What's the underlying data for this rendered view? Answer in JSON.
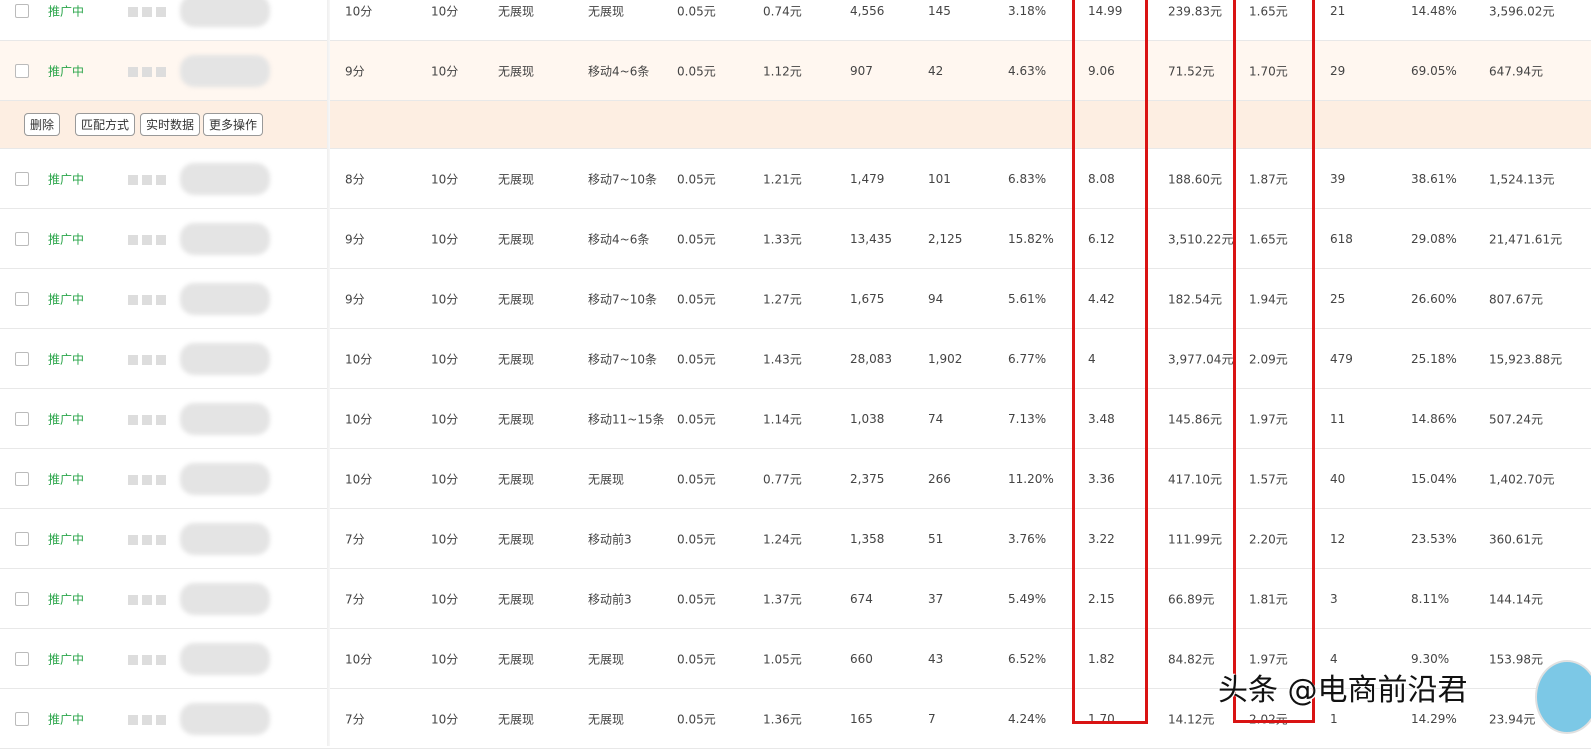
{
  "status_label": "推广中",
  "actions": {
    "delete": "删除",
    "match": "匹配方式",
    "realtime": "实时数据",
    "more": "更多操作"
  },
  "rows": [
    [
      "10分",
      "10分",
      "无展现",
      "无展现",
      "0.05元",
      "0.74元",
      "4,556",
      "145",
      "3.18%",
      "14.99",
      "239.83元",
      "1.65元",
      "21",
      "14.48%",
      "3,596.02元"
    ],
    [
      "9分",
      "10分",
      "无展现",
      "移动4~6条",
      "0.05元",
      "1.12元",
      "907",
      "42",
      "4.63%",
      "9.06",
      "71.52元",
      "1.70元",
      "29",
      "69.05%",
      "647.94元"
    ],
    [
      "8分",
      "10分",
      "无展现",
      "移动7~10条",
      "0.05元",
      "1.21元",
      "1,479",
      "101",
      "6.83%",
      "8.08",
      "188.60元",
      "1.87元",
      "39",
      "38.61%",
      "1,524.13元"
    ],
    [
      "9分",
      "10分",
      "无展现",
      "移动4~6条",
      "0.05元",
      "1.33元",
      "13,435",
      "2,125",
      "15.82%",
      "6.12",
      "3,510.22元",
      "1.65元",
      "618",
      "29.08%",
      "21,471.61元"
    ],
    [
      "9分",
      "10分",
      "无展现",
      "移动7~10条",
      "0.05元",
      "1.27元",
      "1,675",
      "94",
      "5.61%",
      "4.42",
      "182.54元",
      "1.94元",
      "25",
      "26.60%",
      "807.67元"
    ],
    [
      "10分",
      "10分",
      "无展现",
      "移动7~10条",
      "0.05元",
      "1.43元",
      "28,083",
      "1,902",
      "6.77%",
      "4",
      "3,977.04元",
      "2.09元",
      "479",
      "25.18%",
      "15,923.88元"
    ],
    [
      "10分",
      "10分",
      "无展现",
      "移动11~15条",
      "0.05元",
      "1.14元",
      "1,038",
      "74",
      "7.13%",
      "3.48",
      "145.86元",
      "1.97元",
      "11",
      "14.86%",
      "507.24元"
    ],
    [
      "10分",
      "10分",
      "无展现",
      "无展现",
      "0.05元",
      "0.77元",
      "2,375",
      "266",
      "11.20%",
      "3.36",
      "417.10元",
      "1.57元",
      "40",
      "15.04%",
      "1,402.70元"
    ],
    [
      "7分",
      "10分",
      "无展现",
      "移动前3",
      "0.05元",
      "1.24元",
      "1,358",
      "51",
      "3.76%",
      "3.22",
      "111.99元",
      "2.20元",
      "12",
      "23.53%",
      "360.61元"
    ],
    [
      "7分",
      "10分",
      "无展现",
      "移动前3",
      "0.05元",
      "1.37元",
      "674",
      "37",
      "5.49%",
      "2.15",
      "66.89元",
      "1.81元",
      "3",
      "8.11%",
      "144.14元"
    ],
    [
      "10分",
      "10分",
      "无展现",
      "无展现",
      "0.05元",
      "1.05元",
      "660",
      "43",
      "6.52%",
      "1.82",
      "84.82元",
      "1.97元",
      "4",
      "9.30%",
      "153.98元"
    ],
    [
      "7分",
      "10分",
      "无展现",
      "无展现",
      "0.05元",
      "1.36元",
      "165",
      "7",
      "4.24%",
      "1.70",
      "14.12元",
      "2.02元",
      "1",
      "14.29%",
      "23.94元"
    ]
  ],
  "highlight_color": "#d91313",
  "watermark": "头条 @电商前沿君"
}
